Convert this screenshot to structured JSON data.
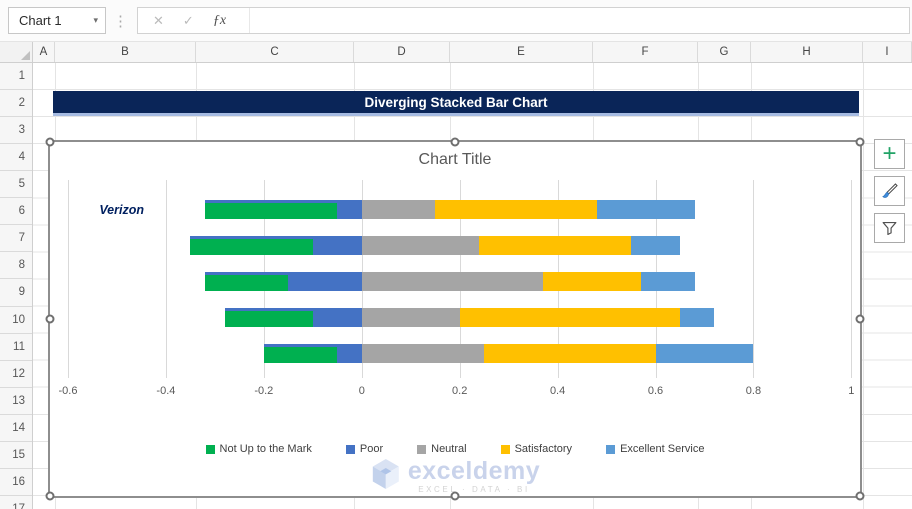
{
  "app": {
    "name_box": "Chart 1",
    "formula_bar_value": "",
    "icons": {
      "dropdown": "▾",
      "more": "⋮",
      "cancel": "✕",
      "confirm": "✓",
      "function": "ƒx",
      "add": "+"
    }
  },
  "sheet": {
    "columns": [
      "A",
      "B",
      "C",
      "D",
      "E",
      "F",
      "G",
      "H",
      "I"
    ],
    "rows": [
      "1",
      "2",
      "3",
      "4",
      "5",
      "6",
      "7",
      "8",
      "9",
      "10",
      "11",
      "12",
      "13",
      "14",
      "15",
      "16",
      "17"
    ]
  },
  "banner": {
    "title": "Diverging Stacked Bar Chart",
    "bg_color": "#0A2558",
    "underline_color": "#A6BBE2"
  },
  "chart_data": {
    "type": "bar",
    "orientation": "horizontal-diverging-stacked",
    "title": "Chart Title",
    "categories": [
      "Verizon",
      "",
      "",
      "",
      ""
    ],
    "series": [
      {
        "name": "Not Up to the Mark",
        "color": "#00B050",
        "values": [
          -0.27,
          -0.25,
          -0.17,
          -0.18,
          -0.15
        ]
      },
      {
        "name": "Poor",
        "color": "#4472C4",
        "values": [
          -0.05,
          -0.1,
          -0.15,
          -0.1,
          -0.05
        ]
      },
      {
        "name": "Neutral",
        "color": "#A5A5A5",
        "values": [
          0.15,
          0.24,
          0.37,
          0.2,
          0.25
        ]
      },
      {
        "name": "Satisfactory",
        "color": "#FFC000",
        "values": [
          0.33,
          0.31,
          0.2,
          0.45,
          0.35
        ]
      },
      {
        "name": "Excellent Service",
        "color": "#5B9BD5",
        "values": [
          0.2,
          0.1,
          0.11,
          0.07,
          0.2
        ]
      }
    ],
    "xlim": [
      -0.6,
      1.0
    ],
    "xticks": [
      -0.6,
      -0.4,
      -0.2,
      0,
      0.2,
      0.4,
      0.6,
      0.8,
      1
    ],
    "xtick_labels": [
      "-0.6",
      "-0.4",
      "-0.2",
      "0",
      "0.2",
      "0.4",
      "0.6",
      "0.8",
      "1"
    ],
    "xlabel": "",
    "ylabel": "",
    "grid": "vertical",
    "legend_position": "bottom",
    "note_each_bar_total": 1.0
  },
  "watermark": {
    "brand": "exceldemy",
    "tagline": "EXCEL · DATA · BI"
  }
}
